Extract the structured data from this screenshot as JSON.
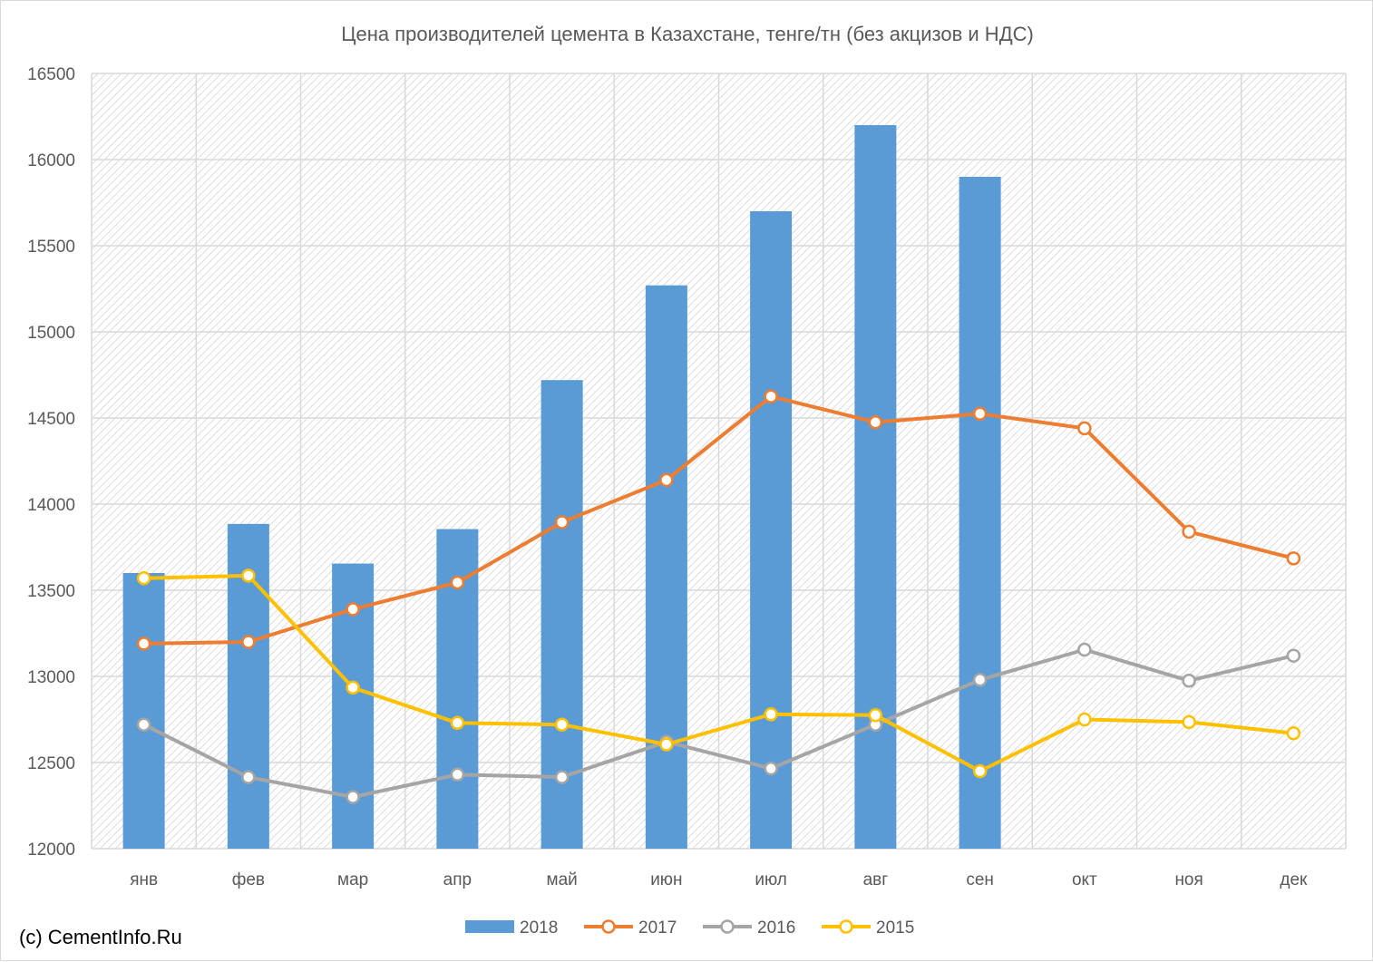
{
  "chart_data": {
    "type": "bar",
    "title": "Цена производителей цемента в Казахстане, тенге/тн (без акцизов и НДС)",
    "xlabel": "",
    "ylabel": "",
    "ylim": [
      12000,
      16500
    ],
    "y_ticks": [
      12000,
      12500,
      13000,
      13500,
      14000,
      14500,
      15000,
      15500,
      16000,
      16500
    ],
    "grid": true,
    "legend_position": "bottom",
    "categories": [
      "янв",
      "фев",
      "мар",
      "апр",
      "май",
      "июн",
      "июл",
      "авг",
      "сен",
      "окт",
      "ноя",
      "дек"
    ],
    "series": [
      {
        "name": "2018",
        "type": "bar",
        "color": "#5b9bd5",
        "values": [
          13600,
          13885,
          13655,
          13855,
          14720,
          15270,
          15700,
          16200,
          15900,
          null,
          null,
          null
        ]
      },
      {
        "name": "2017",
        "type": "line",
        "color": "#ed7d31",
        "values": [
          13190,
          13200,
          13390,
          13545,
          13895,
          14140,
          14625,
          14475,
          14525,
          14440,
          13840,
          13685
        ]
      },
      {
        "name": "2016",
        "type": "line",
        "color": "#a5a5a5",
        "values": [
          12720,
          12415,
          12300,
          12430,
          12415,
          12620,
          12465,
          12720,
          12980,
          13155,
          12975,
          13120
        ]
      },
      {
        "name": "2015",
        "type": "line",
        "color": "#ffc000",
        "values": [
          13570,
          13585,
          12935,
          12730,
          12720,
          12605,
          12780,
          12775,
          12450,
          12750,
          12735,
          12670
        ]
      }
    ]
  },
  "credit": "(c) CementInfo.Ru"
}
